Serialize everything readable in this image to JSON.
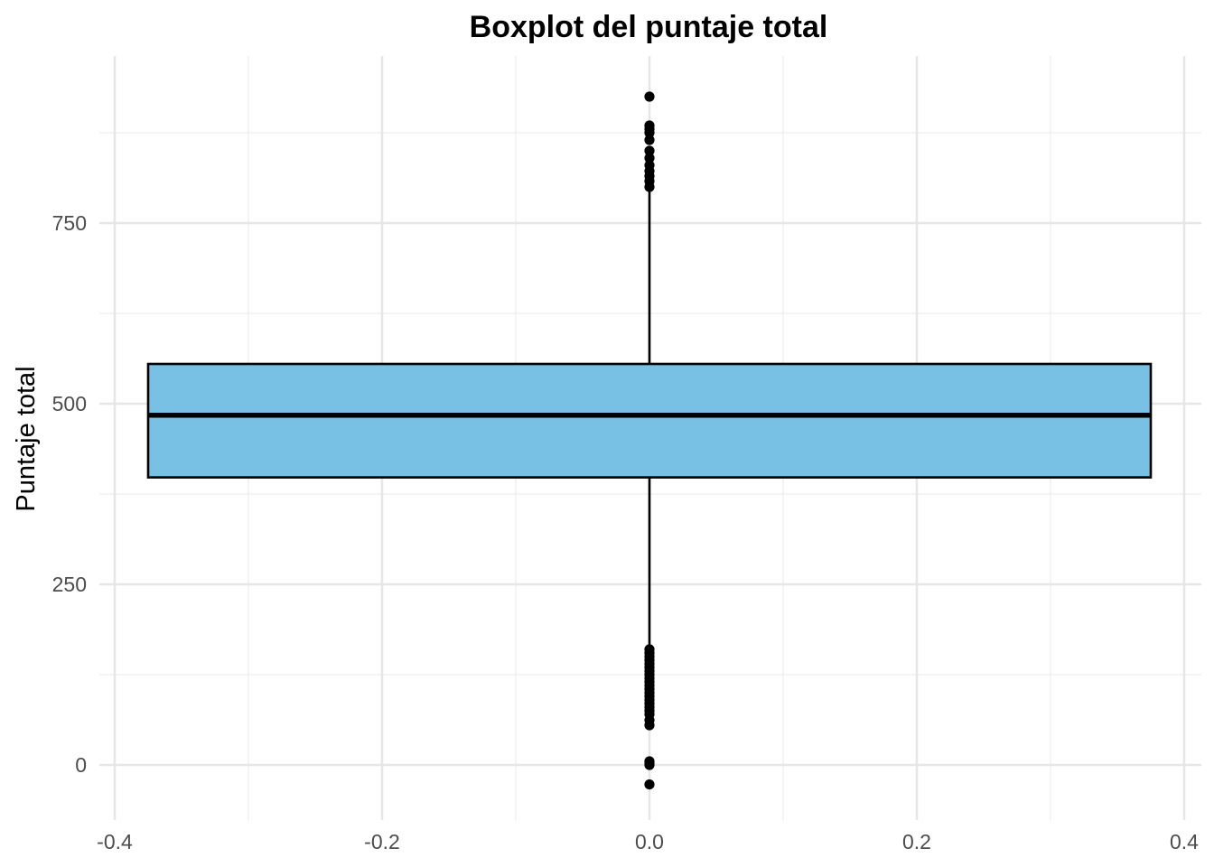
{
  "chart_data": {
    "type": "boxplot",
    "title": "Boxplot del puntaje total",
    "xlabel": "",
    "ylabel": "Puntaje total",
    "xlim": [
      -0.4,
      0.4
    ],
    "ylim": [
      -60,
      980
    ],
    "x_ticks": [
      -0.4,
      -0.2,
      0.0,
      0.2,
      0.4
    ],
    "x_tick_labels": [
      "-0.4",
      "-0.2",
      "0.0",
      "0.2",
      "0.4"
    ],
    "y_ticks": [
      0,
      250,
      500,
      750
    ],
    "y_tick_labels": [
      "0",
      "250",
      "500",
      "750"
    ],
    "grid": true,
    "box": {
      "x_center": 0.0,
      "x_left": -0.375,
      "x_right": 0.375,
      "q1": 398,
      "median": 484,
      "q3": 555,
      "whisker_low": 160,
      "whisker_high": 795,
      "fill": "#78C1E4",
      "outline": "#000000"
    },
    "outliers": [
      925,
      885,
      880,
      875,
      865,
      850,
      840,
      830,
      822,
      815,
      808,
      800,
      160,
      155,
      150,
      145,
      140,
      135,
      130,
      125,
      120,
      115,
      110,
      105,
      100,
      95,
      90,
      85,
      80,
      75,
      70,
      62,
      55,
      5,
      2,
      0,
      -27
    ]
  }
}
